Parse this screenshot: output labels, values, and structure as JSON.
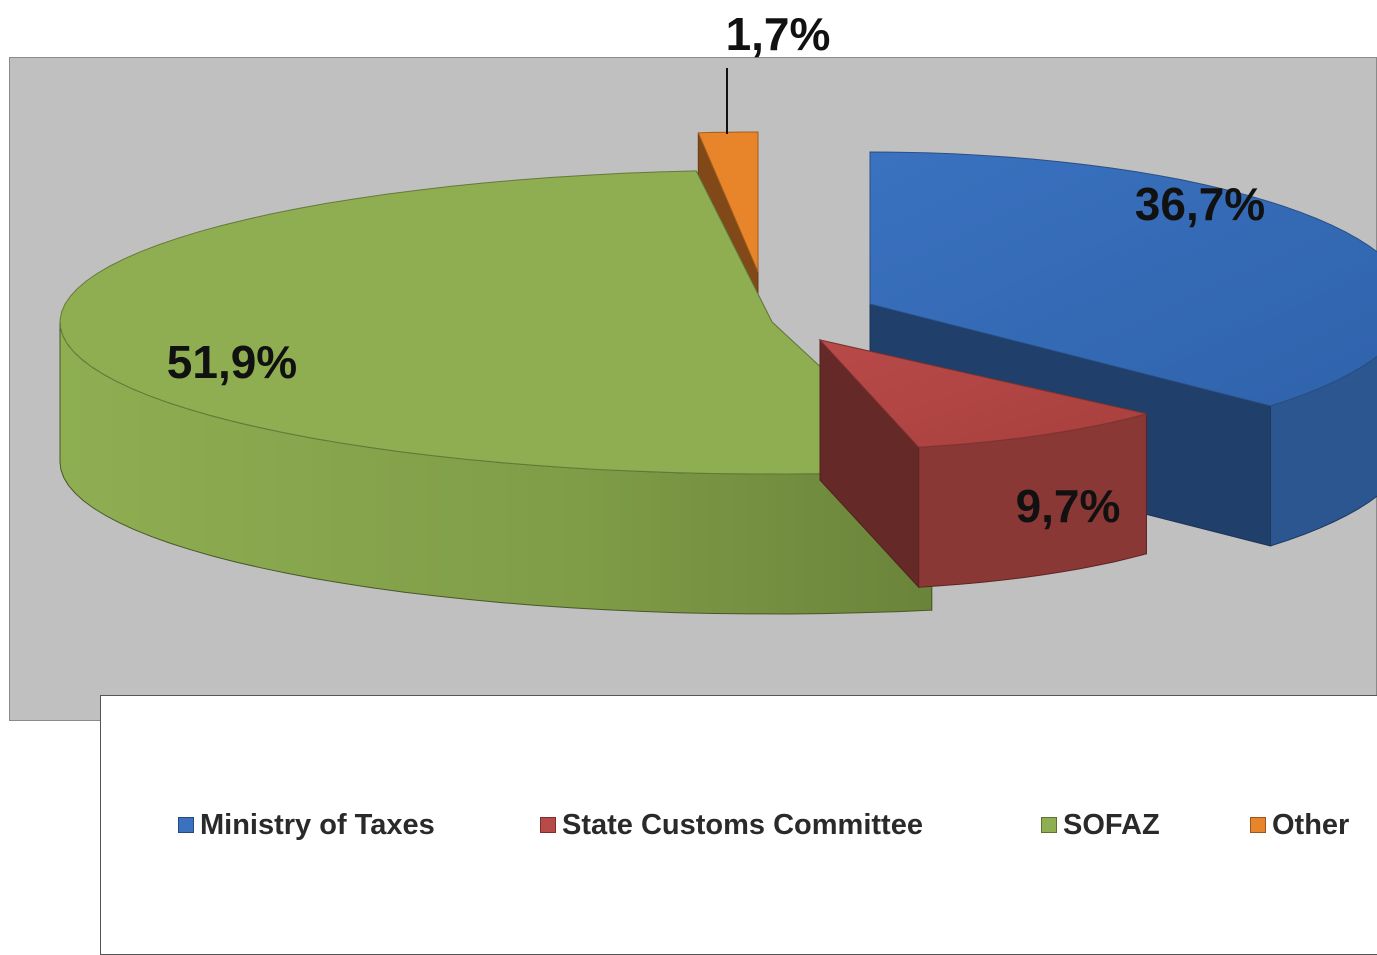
{
  "chart_data": {
    "type": "pie",
    "style": "3d-exploded",
    "slices": [
      {
        "name": "Ministry of Taxes",
        "value": 36.7,
        "label": "36,7%",
        "color": "#3a72c0"
      },
      {
        "name": "State Customs Committee",
        "value": 9.7,
        "label": "9,7%",
        "color": "#b84a48"
      },
      {
        "name": "SOFAZ",
        "value": 51.9,
        "label": "51,9%",
        "color": "#8fae52"
      },
      {
        "name": "Other",
        "value": 1.7,
        "label": "1,7%",
        "color": "#e8842a"
      }
    ],
    "legend": {
      "position": "bottom",
      "entries": [
        "Ministry of Taxes",
        "State Customs Committee",
        "SOFAZ",
        "Other"
      ]
    },
    "background_color": "#c0c0c0"
  }
}
